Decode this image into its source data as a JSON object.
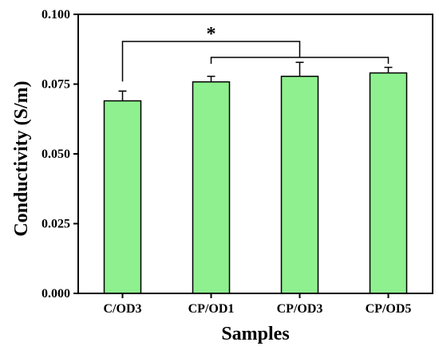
{
  "chart_data": {
    "type": "bar",
    "xlabel": "Samples",
    "ylabel": "Conductivity (S/m)",
    "categories": [
      "C/OD3",
      "CP/OD1",
      "CP/OD3",
      "CP/OD5"
    ],
    "values": [
      0.069,
      0.0758,
      0.0778,
      0.079
    ],
    "errors": [
      0.0035,
      0.002,
      0.005,
      0.002
    ],
    "ylim": [
      0,
      0.1
    ],
    "yticks": [
      "0.000",
      "0.025",
      "0.050",
      "0.075",
      "0.100"
    ],
    "bar_color": "#8ef08e",
    "grid": false,
    "significance": {
      "label": "*",
      "from": "C/OD3",
      "to": [
        "CP/OD1",
        "CP/OD3",
        "CP/OD5"
      ]
    }
  }
}
